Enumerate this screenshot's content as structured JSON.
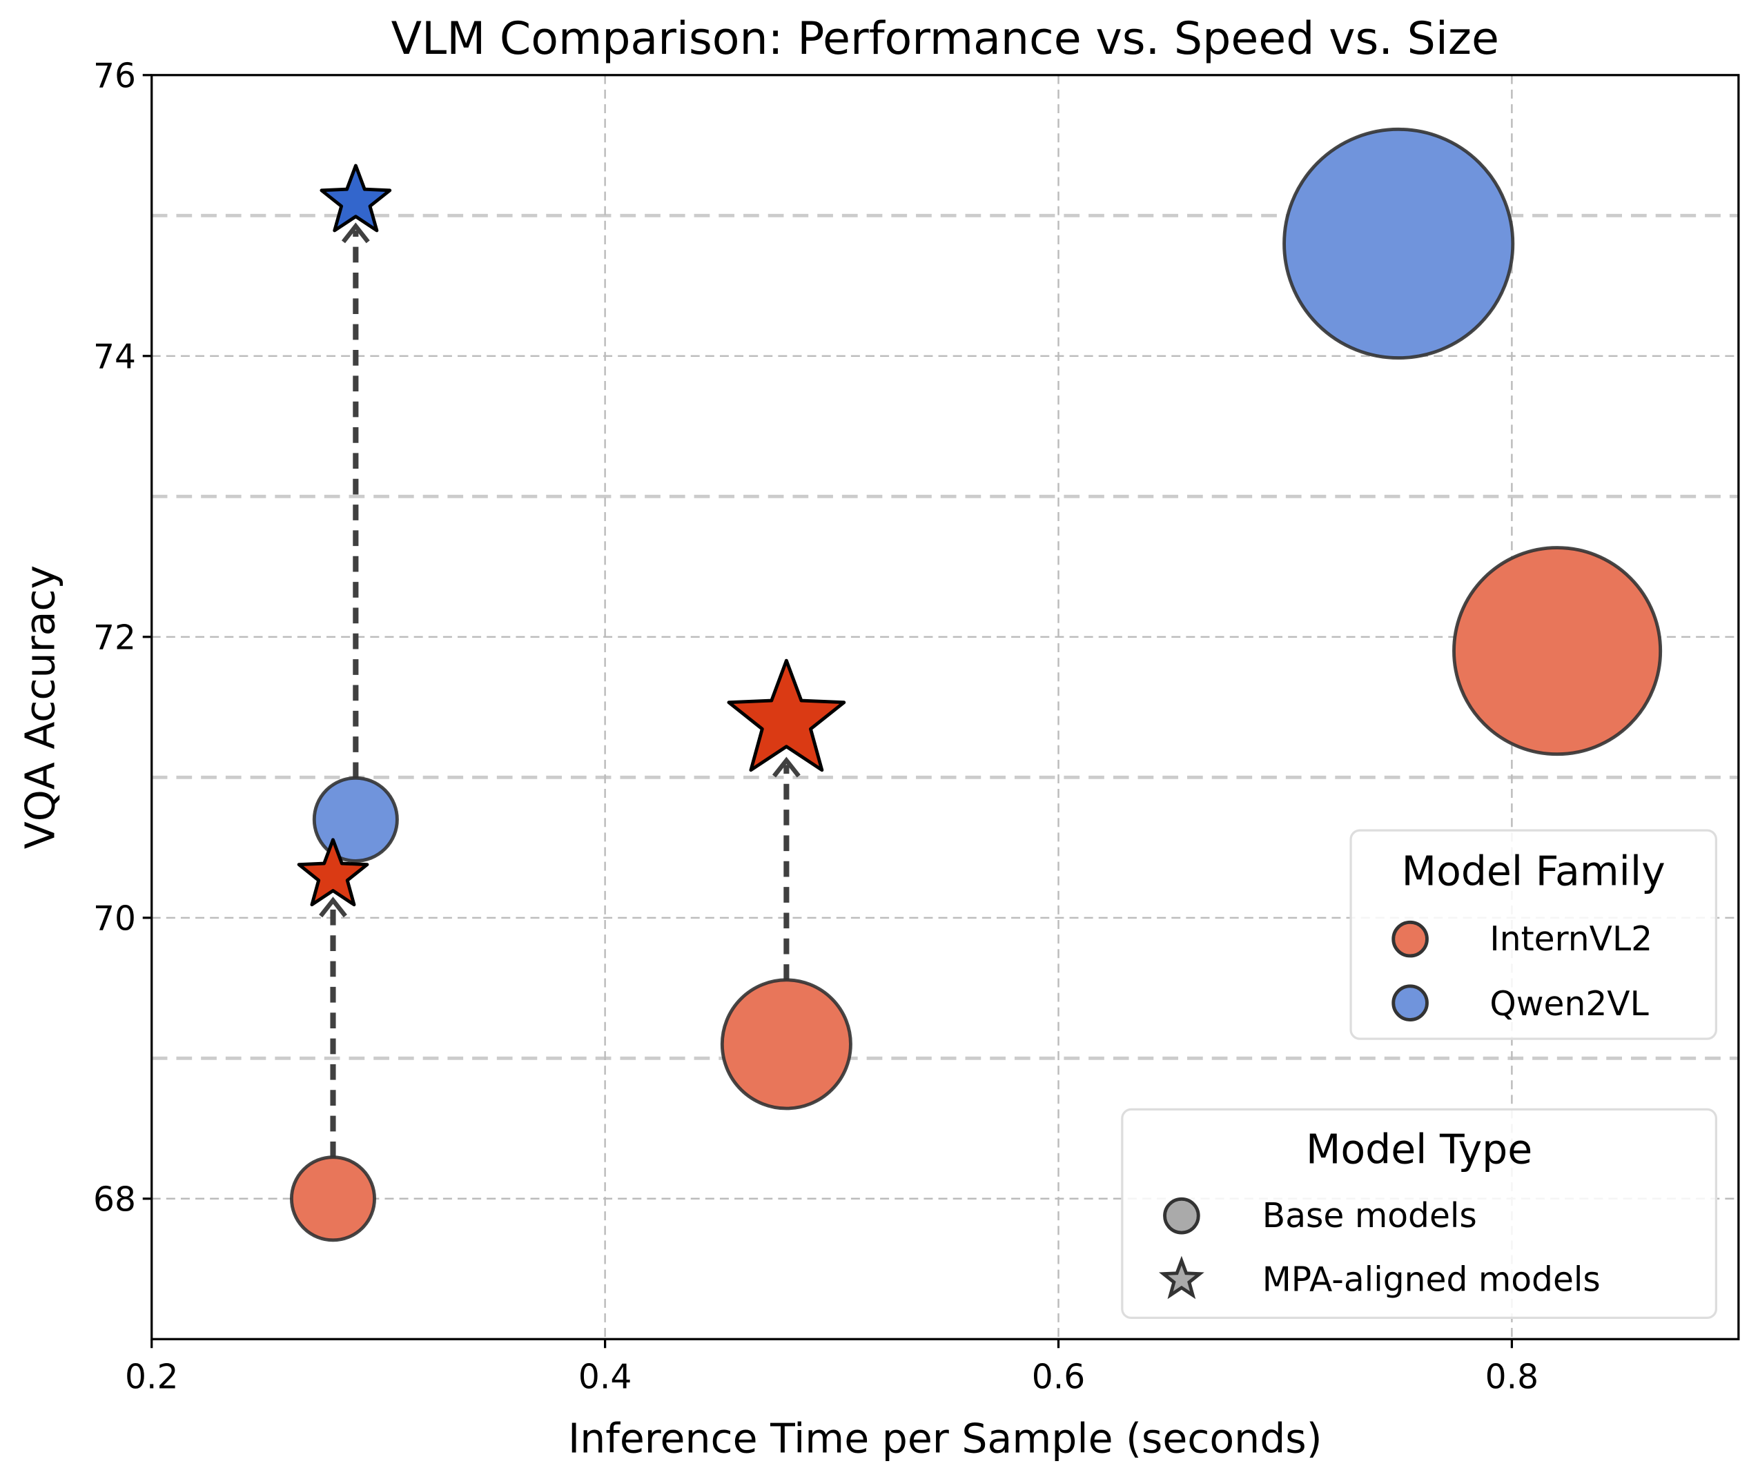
{
  "chart_data": {
    "type": "scatter",
    "title": "VLM Comparison: Performance vs. Speed vs. Size",
    "xlabel": "Inference Time per Sample (seconds)",
    "ylabel": "VQA Accuracy",
    "xlim": [
      0.2,
      0.9
    ],
    "ylim": [
      67,
      76
    ],
    "xticks": [
      0.2,
      0.4,
      0.6,
      0.8
    ],
    "xtick_labels": [
      "0.2",
      "0.4",
      "0.6",
      "0.8"
    ],
    "yticks": [
      68,
      70,
      72,
      74,
      76
    ],
    "ytick_labels": [
      "68",
      "70",
      "72",
      "74",
      "76"
    ],
    "minor_yticks": [
      69,
      71,
      73,
      75
    ],
    "grid": true,
    "colors": {
      "InternVL2": "#E8765A",
      "Qwen2VL": "#7094DC",
      "InternVL2_star": "#DA3A14",
      "Qwen2VL_star": "#3366CC"
    },
    "points": [
      {
        "family": "InternVL2",
        "type": "base",
        "x": 0.28,
        "y": 68.0,
        "bubble_size": 1.0
      },
      {
        "family": "InternVL2",
        "type": "mpa",
        "x": 0.28,
        "y": 70.3,
        "bubble_size": 1.0
      },
      {
        "family": "Qwen2VL",
        "type": "base",
        "x": 0.29,
        "y": 70.7,
        "bubble_size": 1.0
      },
      {
        "family": "Qwen2VL",
        "type": "mpa",
        "x": 0.29,
        "y": 75.1,
        "bubble_size": 1.0
      },
      {
        "family": "InternVL2",
        "type": "base",
        "x": 0.48,
        "y": 69.1,
        "bubble_size": 2.4
      },
      {
        "family": "InternVL2",
        "type": "mpa",
        "x": 0.48,
        "y": 71.4,
        "bubble_size": 2.4
      },
      {
        "family": "Qwen2VL",
        "type": "base",
        "x": 0.75,
        "y": 74.8,
        "bubble_size": 7.6
      },
      {
        "family": "InternVL2",
        "type": "base",
        "x": 0.82,
        "y": 71.9,
        "bubble_size": 6.2
      }
    ],
    "arrows": [
      {
        "from": [
          0.28,
          68.0
        ],
        "to": [
          0.28,
          70.3
        ]
      },
      {
        "from": [
          0.29,
          70.7
        ],
        "to": [
          0.29,
          75.1
        ]
      },
      {
        "from": [
          0.48,
          69.1
        ],
        "to": [
          0.48,
          71.4
        ]
      }
    ],
    "legends": [
      {
        "title": "Model Family",
        "placement": "right",
        "entries": [
          "InternVL2",
          "Qwen2VL"
        ]
      },
      {
        "title": "Model Type",
        "placement": "lower-right",
        "entries": [
          "Base models",
          "MPA-aligned models"
        ]
      }
    ]
  }
}
